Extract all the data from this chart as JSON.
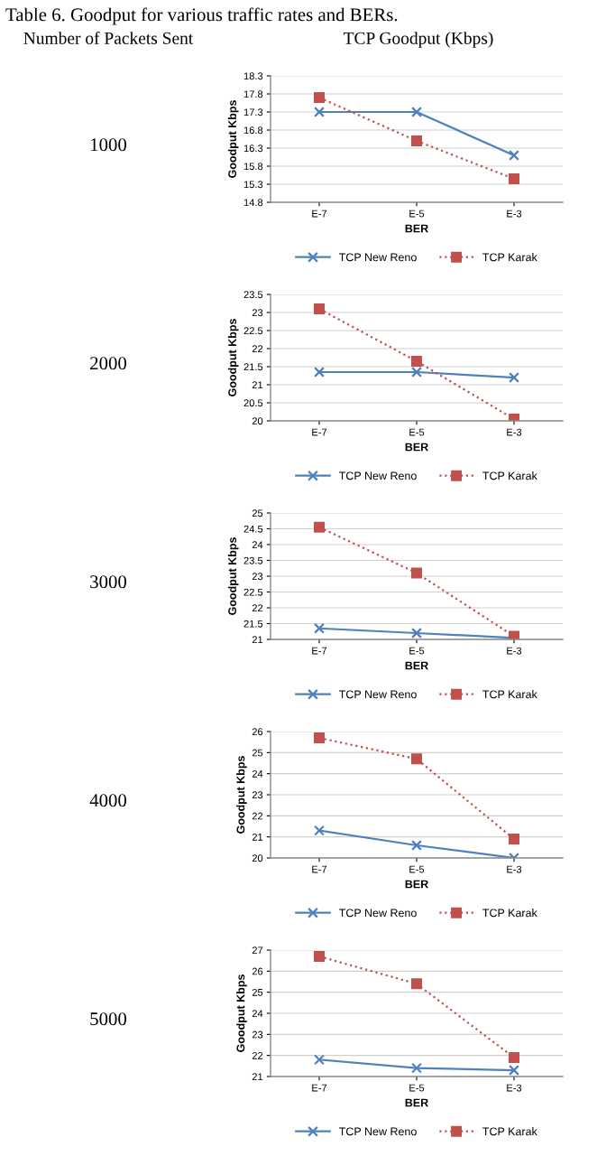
{
  "chart_data": [
    {
      "type": "line",
      "title": "Table 6. Goodput for various traffic rates and BERs.",
      "annotations": [
        "Number of Packets Sent",
        "TCP Goodput (Kbps)",
        "1000"
      ],
      "xlabel": "BER",
      "ylabel": "Goodput Kbps",
      "categories": [
        "E-7",
        "E-5",
        "E-3"
      ],
      "ylim": [
        14.8,
        18.3
      ],
      "yticks": [
        14.8,
        15.3,
        15.8,
        16.3,
        16.8,
        17.3,
        17.8,
        18.3
      ],
      "grid": "y",
      "legend": "bottom",
      "series": [
        {
          "name": "TCP New Reno",
          "color": "#4f81bd",
          "marker": "cross",
          "line_style": "solid",
          "values": [
            17.3,
            17.3,
            16.1
          ]
        },
        {
          "name": "TCP Karak",
          "color": "#c0504d",
          "marker": "square",
          "line_style": "dotted",
          "values": [
            17.7,
            16.5,
            15.45
          ]
        }
      ]
    },
    {
      "type": "line",
      "annotations": [
        "2000"
      ],
      "xlabel": "BER",
      "ylabel": "Goodput Kbps",
      "categories": [
        "E-7",
        "E-5",
        "E-3"
      ],
      "ylim": [
        20,
        23.5
      ],
      "yticks": [
        20,
        20.5,
        21,
        21.5,
        22,
        22.5,
        23,
        23.5
      ],
      "grid": "y",
      "legend": "bottom",
      "series": [
        {
          "name": "TCP New Reno",
          "color": "#4f81bd",
          "marker": "cross",
          "line_style": "solid",
          "values": [
            21.35,
            21.35,
            21.2
          ]
        },
        {
          "name": "TCP Karak",
          "color": "#c0504d",
          "marker": "square",
          "line_style": "dotted",
          "values": [
            23.1,
            21.65,
            20.05
          ]
        }
      ]
    },
    {
      "type": "line",
      "annotations": [
        "3000"
      ],
      "xlabel": "BER",
      "ylabel": "Goodput Kbps",
      "categories": [
        "E-7",
        "E-5",
        "E-3"
      ],
      "ylim": [
        21,
        25
      ],
      "yticks": [
        21,
        21.5,
        22,
        22.5,
        23,
        23.5,
        24,
        24.5,
        25
      ],
      "grid": "y",
      "legend": "bottom",
      "series": [
        {
          "name": "TCP New Reno",
          "color": "#4f81bd",
          "marker": "cross",
          "line_style": "solid",
          "values": [
            21.35,
            21.2,
            21.05
          ]
        },
        {
          "name": "TCP Karak",
          "color": "#c0504d",
          "marker": "square",
          "line_style": "dotted",
          "values": [
            24.55,
            23.1,
            21.1
          ]
        }
      ]
    },
    {
      "type": "line",
      "annotations": [
        "4000"
      ],
      "xlabel": "BER",
      "ylabel": "Goodput Kbps",
      "categories": [
        "E-7",
        "E-5",
        "E-3"
      ],
      "ylim": [
        20,
        26
      ],
      "yticks": [
        20,
        21,
        22,
        23,
        24,
        25,
        26
      ],
      "grid": "y",
      "legend": "bottom",
      "series": [
        {
          "name": "TCP New Reno",
          "color": "#4f81bd",
          "marker": "cross",
          "line_style": "solid",
          "values": [
            21.3,
            20.6,
            20.0
          ]
        },
        {
          "name": "TCP Karak",
          "color": "#c0504d",
          "marker": "square",
          "line_style": "dotted",
          "values": [
            25.7,
            24.7,
            20.9
          ]
        }
      ]
    },
    {
      "type": "line",
      "annotations": [
        "5000"
      ],
      "xlabel": "BER",
      "ylabel": "Goodput Kbps",
      "categories": [
        "E-7",
        "E-5",
        "E-3"
      ],
      "ylim": [
        21,
        27
      ],
      "yticks": [
        21,
        22,
        23,
        24,
        25,
        26,
        27
      ],
      "grid": "y",
      "legend": "bottom",
      "series": [
        {
          "name": "TCP New Reno",
          "color": "#4f81bd",
          "marker": "cross",
          "line_style": "solid",
          "values": [
            21.8,
            21.4,
            21.3
          ]
        },
        {
          "name": "TCP Karak",
          "color": "#c0504d",
          "marker": "square",
          "line_style": "dotted",
          "values": [
            26.7,
            25.4,
            21.9
          ]
        }
      ]
    }
  ]
}
